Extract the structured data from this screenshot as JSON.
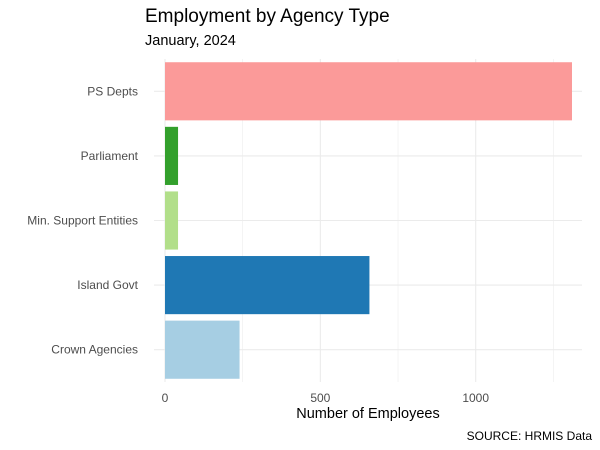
{
  "chart_data": {
    "type": "bar",
    "orientation": "horizontal",
    "title": "Employment by Agency Type",
    "subtitle": "January, 2024",
    "xlabel": "Number of Employees",
    "ylabel": "",
    "caption": "SOURCE: HRMIS Data",
    "categories": [
      "PS Depts",
      "Parliament",
      "Min. Support Entities",
      "Island Govt",
      "Crown Agencies"
    ],
    "values": [
      1310,
      42,
      42,
      658,
      240
    ],
    "colors": [
      "#fb9a99",
      "#33a02c",
      "#b2df8a",
      "#1f78b4",
      "#a6cee3"
    ],
    "xlim": [
      0,
      1310
    ],
    "x_ticks": [
      0,
      500,
      1000
    ],
    "x_tick_labels": [
      "0",
      "500",
      "1000"
    ],
    "grid": true,
    "legend": "none"
  }
}
